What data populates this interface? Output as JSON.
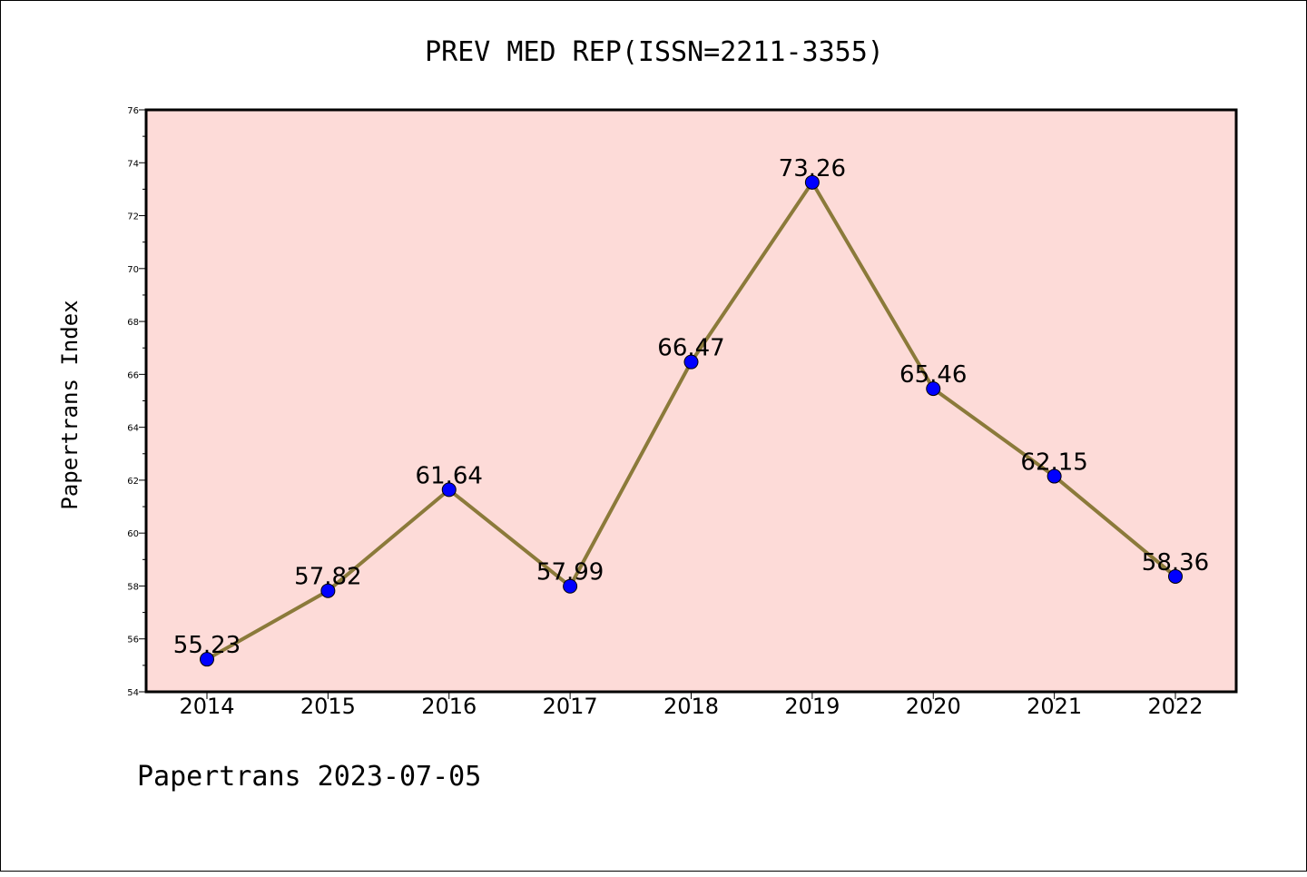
{
  "chart_data": {
    "type": "line",
    "title": "PREV MED REP(ISSN=2211-3355)",
    "xlabel": "",
    "ylabel": "Papertrans Index",
    "categories": [
      "2014",
      "2015",
      "2016",
      "2017",
      "2018",
      "2019",
      "2020",
      "2021",
      "2022"
    ],
    "series": [
      {
        "values": [
          55.23,
          57.82,
          61.64,
          57.99,
          66.47,
          73.26,
          65.46,
          62.15,
          58.36
        ],
        "data_labels": [
          "55.23",
          "57.82",
          "61.64",
          "57.99",
          "66.47",
          "73.26",
          "65.46",
          "62.15",
          "58.36"
        ]
      }
    ],
    "ylim": [
      54,
      76
    ],
    "yticks": [
      "54",
      "56",
      "58",
      "60",
      "62",
      "64",
      "66",
      "68",
      "70",
      "72",
      "74",
      "76"
    ],
    "grid": false,
    "legend": "none",
    "colors": {
      "plot_background": "#fddbd8",
      "line": "#8b7a3a",
      "marker": "#0000ff"
    }
  },
  "footer": "Papertrans 2023-07-05"
}
